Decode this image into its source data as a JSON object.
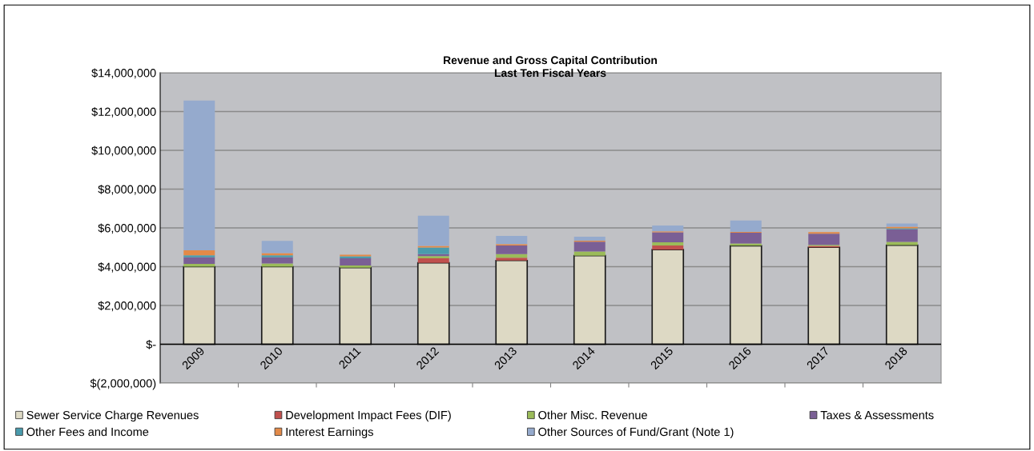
{
  "chart_data": {
    "type": "bar",
    "stacked": true,
    "title": "Revenue and Gross Capital Contribution",
    "subtitle": "Last Ten Fiscal Years",
    "categories": [
      "2009",
      "2010",
      "2011",
      "2012",
      "2013",
      "2014",
      "2015",
      "2016",
      "2017",
      "2018"
    ],
    "series": [
      {
        "name": "Sewer Service Charge Revenues",
        "color": "#ddd9c4",
        "values": [
          4000000,
          4000000,
          3950000,
          4200000,
          4320000,
          4570000,
          4880000,
          5080000,
          5000000,
          5110000
        ]
      },
      {
        "name": "Development Impact Fees (DIF)",
        "color": "#c0504d",
        "values": [
          null,
          null,
          null,
          230000,
          140000,
          null,
          210000,
          null,
          70000,
          null
        ]
      },
      {
        "name": "Other Misc. Revenue",
        "color": "#9bbb59",
        "values": [
          140000,
          160000,
          110000,
          120000,
          190000,
          210000,
          170000,
          120000,
          50000,
          170000
        ]
      },
      {
        "name": "Taxes & Assessments",
        "color": "#7a5f95",
        "values": [
          340000,
          320000,
          370000,
          100000,
          440000,
          510000,
          510000,
          550000,
          580000,
          650000
        ]
      },
      {
        "name": "Other Fees and Income",
        "color": "#4a9bad",
        "values": [
          110000,
          110000,
          110000,
          340000,
          0,
          0,
          0,
          0,
          0,
          50000
        ]
      },
      {
        "name": "Interest Earnings",
        "color": "#e38a48",
        "values": [
          260000,
          110000,
          80000,
          80000,
          70000,
          50000,
          50000,
          40000,
          80000,
          80000
        ]
      },
      {
        "name": "Other Sources of Fund/Grant (Note 1)",
        "color": "#95aacd",
        "values": [
          7720000,
          630000,
          0,
          1560000,
          430000,
          210000,
          300000,
          590000,
          0,
          170000
        ]
      }
    ],
    "ylim": [
      -2000000,
      14000000
    ],
    "yticks": [
      {
        "value": -2000000,
        "label": "$(2,000,000)"
      },
      {
        "value": 0,
        "label": "$-"
      },
      {
        "value": 2000000,
        "label": "$2,000,000"
      },
      {
        "value": 4000000,
        "label": "$4,000,000"
      },
      {
        "value": 6000000,
        "label": "$6,000,000"
      },
      {
        "value": 8000000,
        "label": "$8,000,000"
      },
      {
        "value": 10000000,
        "label": "$10,000,000"
      },
      {
        "value": 12000000,
        "label": "$12,000,000"
      },
      {
        "value": 14000000,
        "label": "$14,000,000"
      }
    ],
    "grid": "y",
    "legend": "bottom"
  }
}
